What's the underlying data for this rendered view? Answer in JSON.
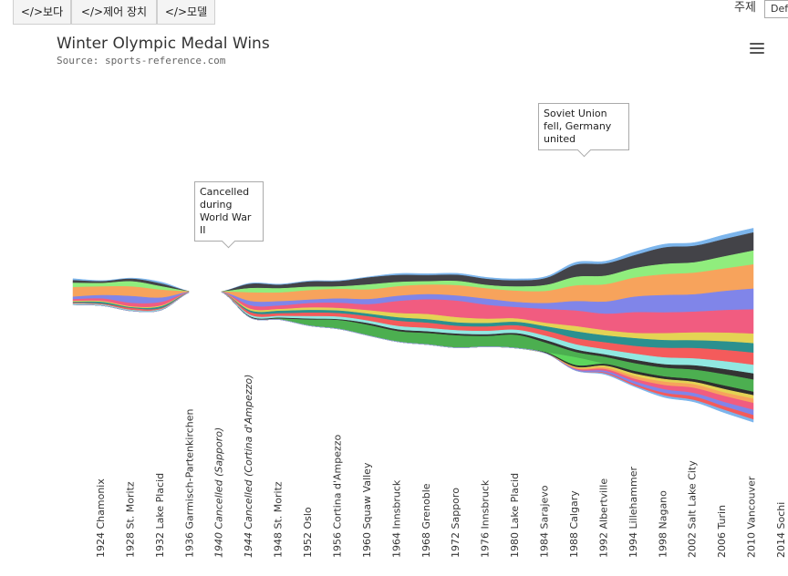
{
  "tabs": [
    {
      "label": "</>보다"
    },
    {
      "label": "</>제어 장치"
    },
    {
      "label": "</>모델"
    }
  ],
  "theme": {
    "label": "주제",
    "value": "Def"
  },
  "menu_icon": "hamburger-menu-icon",
  "chart_data": {
    "type": "area",
    "title": "Winter Olympic Medal Wins",
    "subtitle": "Source: sports-reference.com",
    "categories": [
      "1924 Chamonix",
      "1928 St. Moritz",
      "1932 Lake Placid",
      "1936 Garmisch-Partenkirchen",
      "1940 Cancelled (Sapporo)",
      "1944 Cancelled (Cortina d'Ampezzo)",
      "1948 St. Moritz",
      "1952 Oslo",
      "1956 Cortina d'Ampezzo",
      "1960 Squaw Valley",
      "1964 Innsbruck",
      "1968 Grenoble",
      "1972 Sapporo",
      "1976 Innsbruck",
      "1980 Lake Placid",
      "1984 Sarajevo",
      "1988 Calgary",
      "1992 Albertville",
      "1994 Lillehammer",
      "1998 Nagano",
      "2002 Salt Lake City",
      "2006 Turin",
      "2010 Vancouver",
      "2014 Sochi"
    ],
    "cancelled_indices": [
      4,
      5
    ],
    "stacking": "streamgraph",
    "annotations": [
      {
        "text": "Cancelled during World War II",
        "category": "1944 Cancelled (Cortina d'Ampezzo)"
      },
      {
        "text": "Soviet Union fell, Germany united",
        "category": "1992 Albertville"
      }
    ],
    "series": [
      {
        "color": "#7cb5ec",
        "values": [
          2,
          1,
          1,
          2,
          0,
          0,
          1,
          1,
          1,
          1,
          1,
          2,
          2,
          2,
          2,
          2,
          2,
          3,
          3,
          4,
          4,
          4,
          5,
          5
        ]
      },
      {
        "color": "#434348",
        "values": [
          3,
          2,
          3,
          3,
          0,
          0,
          5,
          4,
          6,
          6,
          8,
          8,
          7,
          7,
          7,
          7,
          8,
          14,
          14,
          15,
          19,
          19,
          20,
          21
        ]
      },
      {
        "color": "#90ed7d",
        "values": [
          5,
          4,
          6,
          4,
          0,
          0,
          5,
          5,
          4,
          3,
          6,
          5,
          4,
          5,
          4,
          5,
          7,
          10,
          10,
          11,
          12,
          12,
          14,
          16
        ]
      },
      {
        "color": "#f7a35c",
        "values": [
          11,
          10,
          11,
          9,
          0,
          0,
          10,
          10,
          11,
          11,
          11,
          11,
          11,
          12,
          12,
          13,
          14,
          18,
          20,
          22,
          24,
          25,
          26,
          28
        ]
      },
      {
        "color": "#8085e9",
        "values": [
          3,
          4,
          8,
          5,
          0,
          0,
          5,
          5,
          4,
          5,
          6,
          6,
          6,
          6,
          7,
          6,
          7,
          11,
          14,
          18,
          20,
          20,
          22,
          24
        ]
      },
      {
        "color": "#f15c80",
        "values": [
          2,
          3,
          4,
          4,
          0,
          0,
          4,
          4,
          5,
          6,
          7,
          14,
          17,
          19,
          16,
          13,
          16,
          18,
          19,
          24,
          24,
          24,
          26,
          28
        ]
      },
      {
        "color": "#e4d354",
        "values": [
          1,
          1,
          1,
          1,
          0,
          0,
          2,
          2,
          3,
          3,
          4,
          5,
          6,
          6,
          5,
          4,
          4,
          6,
          6,
          6,
          8,
          9,
          10,
          11
        ]
      },
      {
        "color": "#2b908f",
        "values": [
          1,
          2,
          1,
          2,
          0,
          0,
          2,
          3,
          3,
          3,
          3,
          4,
          4,
          4,
          4,
          4,
          5,
          8,
          8,
          9,
          9,
          9,
          10,
          11
        ]
      },
      {
        "color": "#f45b5b",
        "values": [
          1,
          1,
          2,
          1,
          0,
          0,
          3,
          3,
          4,
          4,
          5,
          6,
          6,
          5,
          5,
          5,
          6,
          7,
          8,
          9,
          11,
          12,
          13,
          14
        ]
      },
      {
        "color": "#91e8e1",
        "values": [
          1,
          1,
          1,
          1,
          0,
          0,
          2,
          2,
          3,
          3,
          3,
          4,
          4,
          4,
          4,
          4,
          5,
          6,
          6,
          7,
          8,
          8,
          9,
          10
        ]
      },
      {
        "color": "#333333",
        "values": [
          0,
          0,
          0,
          0,
          0,
          0,
          1,
          1,
          1,
          1,
          2,
          2,
          2,
          2,
          2,
          2,
          3,
          3,
          3,
          4,
          4,
          5,
          6,
          7
        ]
      },
      {
        "color": "#4caf50",
        "values": [
          0,
          0,
          0,
          0,
          0,
          0,
          0,
          1,
          7,
          10,
          12,
          12,
          13,
          14,
          12,
          15,
          11,
          6,
          8,
          9,
          10,
          11,
          13,
          14
        ]
      },
      {
        "color": "#5cd65c",
        "values": [
          0,
          0,
          0,
          0,
          0,
          0,
          0,
          0,
          0,
          0,
          0,
          0,
          0,
          0,
          0,
          0,
          0,
          9,
          0,
          0,
          0,
          0,
          0,
          0
        ]
      },
      {
        "color": "#2e2e2e",
        "values": [
          0,
          0,
          0,
          0,
          0,
          0,
          0,
          0,
          0,
          0,
          0,
          0,
          0,
          0,
          0,
          0,
          1,
          2,
          2,
          3,
          3,
          3,
          4,
          4
        ]
      },
      {
        "color": "#e4d354",
        "values": [
          0,
          0,
          0,
          0,
          0,
          0,
          0,
          0,
          0,
          0,
          0,
          0,
          0,
          0,
          0,
          0,
          0,
          1,
          2,
          3,
          3,
          3,
          4,
          4
        ]
      },
      {
        "color": "#f7a35c",
        "values": [
          0,
          0,
          0,
          0,
          0,
          0,
          0,
          0,
          0,
          0,
          0,
          0,
          0,
          0,
          0,
          0,
          0,
          1,
          2,
          3,
          4,
          4,
          4,
          5
        ]
      },
      {
        "color": "#f15c80",
        "values": [
          0,
          0,
          0,
          0,
          0,
          0,
          0,
          0,
          0,
          0,
          0,
          0,
          0,
          0,
          0,
          0,
          0,
          1,
          2,
          3,
          5,
          6,
          7,
          8
        ]
      },
      {
        "color": "#8085e9",
        "values": [
          0,
          0,
          0,
          0,
          0,
          0,
          0,
          0,
          0,
          0,
          0,
          0,
          0,
          0,
          0,
          0,
          0,
          1,
          2,
          3,
          4,
          4,
          5,
          6
        ]
      },
      {
        "color": "#f45b5b",
        "values": [
          0,
          0,
          0,
          0,
          0,
          0,
          0,
          0,
          0,
          0,
          0,
          0,
          0,
          0,
          0,
          0,
          0,
          0,
          1,
          2,
          3,
          4,
          4,
          5
        ]
      },
      {
        "color": "#7cb5ec",
        "values": [
          0,
          0,
          0,
          0,
          0,
          0,
          0,
          0,
          0,
          0,
          0,
          0,
          0,
          0,
          0,
          0,
          0,
          0,
          1,
          1,
          2,
          2,
          3,
          3
        ]
      }
    ]
  }
}
